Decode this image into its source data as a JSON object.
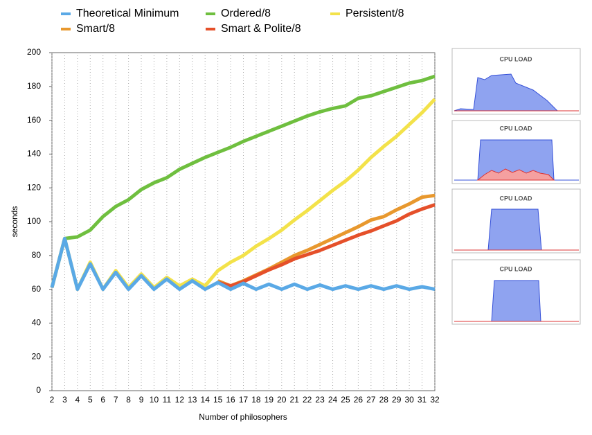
{
  "chart_data": {
    "type": "line",
    "x_label": "Number of philosophers",
    "y_label": "seconds",
    "x": [
      2,
      3,
      4,
      5,
      6,
      7,
      8,
      9,
      10,
      11,
      12,
      13,
      14,
      15,
      16,
      17,
      18,
      19,
      20,
      21,
      22,
      23,
      24,
      25,
      26,
      27,
      28,
      29,
      30,
      31,
      32
    ],
    "xlim": [
      2,
      32
    ],
    "xticks": [
      2,
      3,
      4,
      5,
      6,
      7,
      8,
      9,
      10,
      11,
      12,
      13,
      14,
      15,
      16,
      17,
      18,
      19,
      20,
      21,
      22,
      23,
      24,
      25,
      26,
      27,
      28,
      29,
      30,
      31,
      32
    ],
    "ylim": [
      0,
      200
    ],
    "yticks": [
      0,
      20,
      40,
      60,
      80,
      100,
      120,
      140,
      160,
      180,
      200
    ],
    "grid": "x",
    "legend": "top",
    "series": [
      {
        "name": "Theoretical Minimum",
        "color": "#5aa9e6",
        "values": [
          61,
          90,
          60,
          75,
          60,
          70,
          60,
          68,
          60,
          66,
          60,
          65,
          60,
          64,
          60,
          63.5,
          60,
          63,
          60,
          63,
          60,
          62.5,
          60,
          62,
          60,
          62,
          60,
          62,
          60,
          61.5,
          60
        ]
      },
      {
        "name": "Ordered/8",
        "color": "#6fbf3f",
        "values": [
          61,
          90,
          91,
          95,
          103,
          109,
          113,
          119,
          123,
          126,
          131,
          134.5,
          138,
          141,
          144,
          147.5,
          150.5,
          153.5,
          156.5,
          159.5,
          162.5,
          165,
          167,
          168.5,
          173,
          174.5,
          177,
          179.5,
          182,
          183.5,
          186
        ]
      },
      {
        "name": "Persistent/8",
        "color": "#f3e24a",
        "values": [
          61,
          90,
          60,
          76,
          60,
          71,
          61,
          69,
          61,
          67,
          62,
          66,
          62,
          71,
          76,
          80,
          85.5,
          90,
          95,
          101,
          106.5,
          112.5,
          118.5,
          124,
          130.5,
          138,
          144.5,
          150.5,
          157.5,
          164.5,
          172.5
        ]
      },
      {
        "name": "Smart/8",
        "color": "#e8982e",
        "values": [
          null,
          null,
          null,
          null,
          null,
          null,
          null,
          null,
          null,
          null,
          null,
          null,
          null,
          65,
          62,
          65,
          68.5,
          72,
          76,
          80,
          83,
          86.5,
          90,
          93.5,
          97,
          101,
          103,
          107,
          110.5,
          114.5,
          115.5
        ]
      },
      {
        "name": "Smart & Polite/8",
        "color": "#e5502a",
        "values": [
          null,
          null,
          null,
          null,
          null,
          null,
          null,
          null,
          null,
          null,
          null,
          null,
          null,
          64,
          62,
          64.5,
          68,
          71.5,
          74.5,
          78,
          80.5,
          83,
          86,
          89,
          92,
          94.5,
          97.5,
          100.5,
          104.5,
          107.5,
          110
        ]
      }
    ]
  },
  "panels": [
    {
      "title": "CPU LOAD"
    },
    {
      "title": "CPU LOAD"
    },
    {
      "title": "CPU LOAD"
    },
    {
      "title": "CPU LOAD"
    }
  ]
}
